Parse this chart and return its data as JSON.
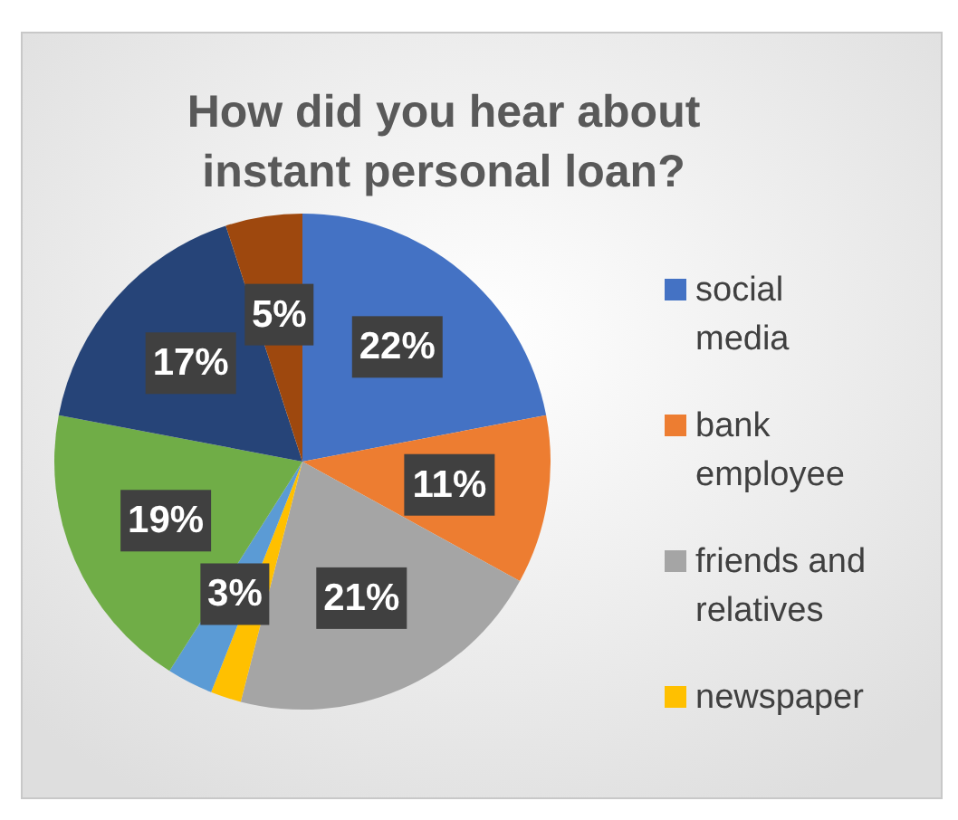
{
  "chart_data": {
    "type": "pie",
    "title": "How did you hear about instant personal loan?",
    "categories": [
      "social media",
      "bank employee",
      "friends and relatives",
      "newspaper",
      null,
      null,
      null,
      null
    ],
    "values": [
      22,
      11,
      21,
      2,
      3,
      19,
      17,
      5
    ],
    "colors": [
      "#4472c4",
      "#ed7d31",
      "#a5a5a5",
      "#ffc000",
      "#5b9bd5",
      "#70ad47",
      "#264478",
      "#9e480e"
    ],
    "value_labels": [
      "22%",
      "11%",
      "21%",
      null,
      "3%",
      "19%",
      "17%",
      "5%"
    ],
    "legend": "right"
  }
}
